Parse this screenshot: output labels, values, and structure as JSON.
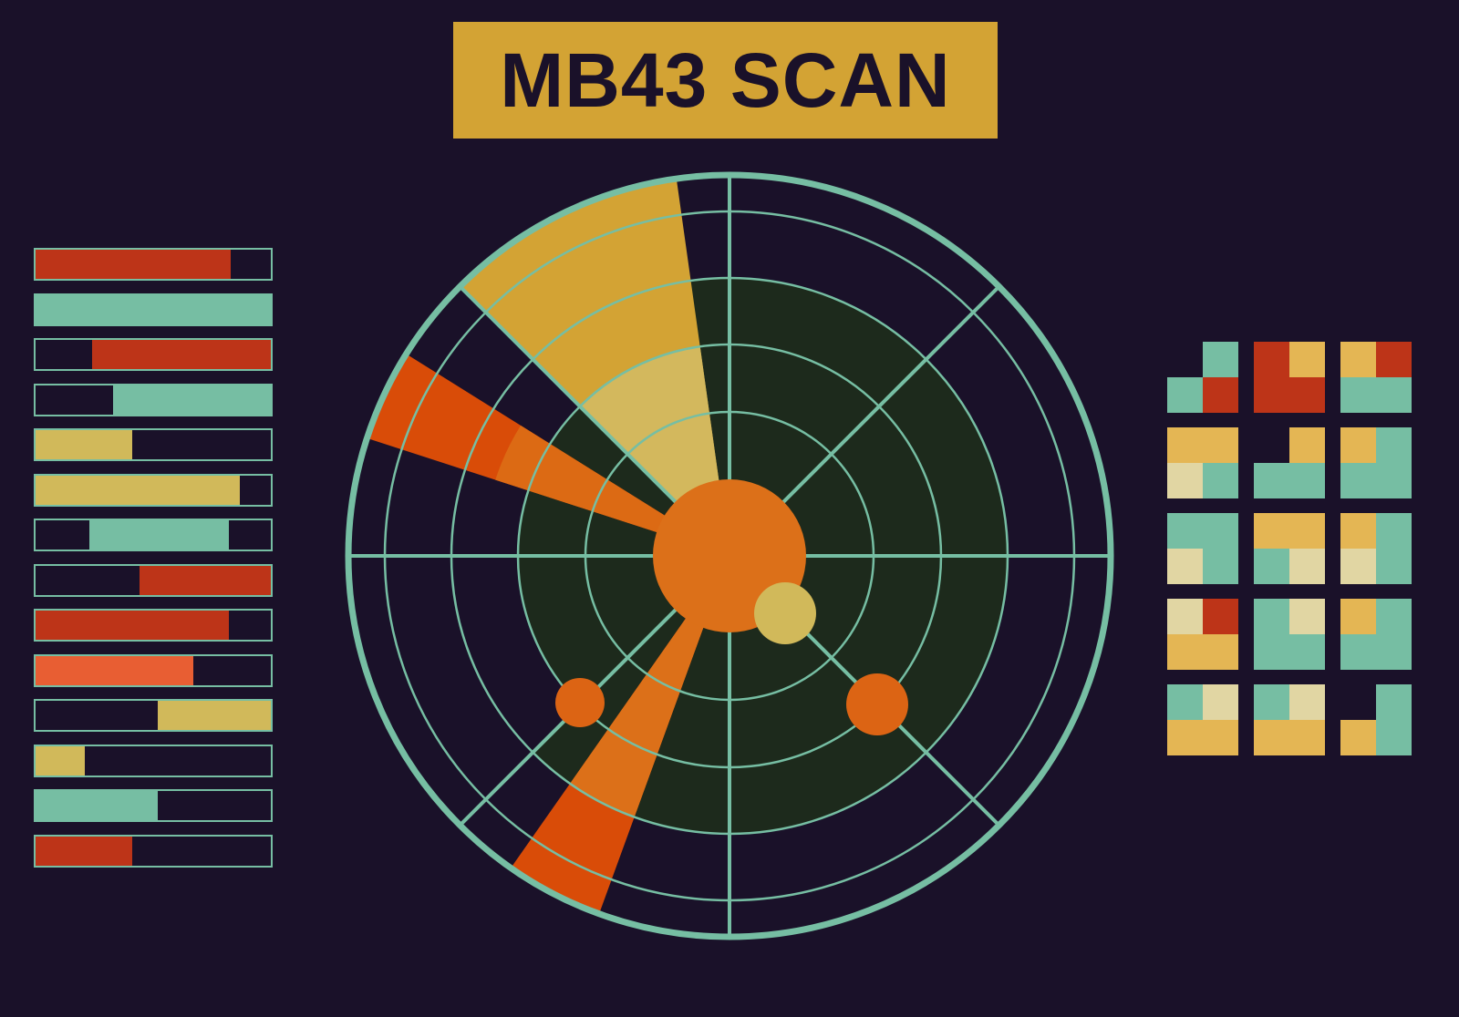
{
  "title": "MB43 SCAN",
  "colors": {
    "background": "#1a1129",
    "gold": "#d3a334",
    "teal": "#76bea3",
    "red": "#bd3418",
    "orange": "#dc7019",
    "orange_red": "#d94c08",
    "pale_gold": "#d1b95a",
    "sector_dark": "#1d2a1c"
  },
  "status_bars": [
    {
      "start": 0.0,
      "end": 0.83,
      "color": "red"
    },
    {
      "start": 0.0,
      "end": 1.0,
      "color": "teal"
    },
    {
      "start": 0.24,
      "end": 1.0,
      "color": "red"
    },
    {
      "start": 0.33,
      "end": 1.0,
      "color": "teal"
    },
    {
      "start": 0.0,
      "end": 0.41,
      "color": "pale_gold"
    },
    {
      "start": 0.0,
      "end": 0.87,
      "color": "pale_gold"
    },
    {
      "start": 0.23,
      "end": 0.82,
      "color": "teal"
    },
    {
      "start": 0.44,
      "end": 1.0,
      "color": "red"
    },
    {
      "start": 0.0,
      "end": 0.82,
      "color": "red"
    },
    {
      "start": 0.0,
      "end": 0.67,
      "color": "orange_light"
    },
    {
      "start": 0.52,
      "end": 1.0,
      "color": "pale_gold"
    },
    {
      "start": 0.0,
      "end": 0.21,
      "color": "pale_gold"
    },
    {
      "start": 0.0,
      "end": 0.52,
      "color": "teal"
    },
    {
      "start": 0.0,
      "end": 0.41,
      "color": "red"
    }
  ],
  "tiles": [
    [
      [
        "E",
        "T",
        "T",
        "R"
      ],
      [
        "R",
        "Y",
        "R",
        "R"
      ],
      [
        "Y",
        "R",
        "T",
        "T"
      ]
    ],
    [
      [
        "Y",
        "Y",
        "C",
        "T"
      ],
      [
        "E",
        "Y",
        "T",
        "T"
      ],
      [
        "Y",
        "T",
        "T",
        "T"
      ]
    ],
    [
      [
        "T",
        "T",
        "C",
        "T"
      ],
      [
        "Y",
        "Y",
        "T",
        "C"
      ],
      [
        "Y",
        "T",
        "C",
        "T"
      ]
    ],
    [
      [
        "C",
        "R",
        "Y",
        "Y"
      ],
      [
        "T",
        "C",
        "T",
        "T"
      ],
      [
        "Y",
        "T",
        "T",
        "T"
      ]
    ],
    [
      [
        "T",
        "C",
        "Y",
        "Y"
      ],
      [
        "T",
        "C",
        "Y",
        "Y"
      ],
      [
        "E",
        "T",
        "Y",
        "T"
      ]
    ]
  ],
  "tile_legend": {
    "T": "teal",
    "R": "red",
    "Y": "yellow",
    "C": "cream",
    "E": "empty"
  }
}
